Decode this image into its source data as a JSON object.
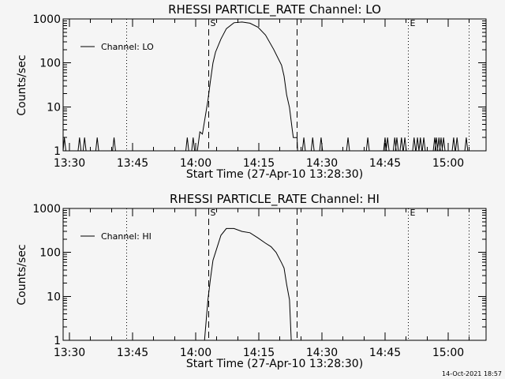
{
  "timestamp": "14-Oct-2021 18:57",
  "colors": {
    "background": "#f5f5f5",
    "ink": "#000000"
  },
  "chart_data": [
    {
      "type": "line",
      "title": "RHESSI PARTICLE_RATE Channel: LO",
      "xlabel": "Start Time (27-Apr-10 13:28:30)",
      "ylabel": "Counts/sec",
      "x_units": "minutes after 13:28:30",
      "xlim": [
        0,
        100.5
      ],
      "ylim": [
        1,
        1000
      ],
      "yscale": "log",
      "xticks": [
        {
          "label": "13:30",
          "value": 1.5
        },
        {
          "label": "13:45",
          "value": 16.5
        },
        {
          "label": "14:00",
          "value": 31.5
        },
        {
          "label": "14:15",
          "value": 46.5
        },
        {
          "label": "14:30",
          "value": 61.5
        },
        {
          "label": "14:45",
          "value": 76.5
        },
        {
          "label": "15:00",
          "value": 91.5
        }
      ],
      "yticks": [
        {
          "label": "1",
          "value": 1
        },
        {
          "label": "10",
          "value": 10
        },
        {
          "label": "100",
          "value": 100
        },
        {
          "label": "1000",
          "value": 1000
        }
      ],
      "legend": {
        "label": "Channel: LO",
        "position": "top-left"
      },
      "markers": [
        {
          "style": "dotted",
          "x": 15.0,
          "label": ""
        },
        {
          "style": "dashed",
          "x": 34.5,
          "label": "S"
        },
        {
          "style": "dashed",
          "x": 55.5,
          "label": ""
        },
        {
          "style": "dotted",
          "x": 81.9,
          "label": "E"
        },
        {
          "style": "dotted",
          "x": 96.4,
          "label": ""
        }
      ],
      "series": [
        {
          "name": "Channel: LO",
          "x": [
            31.9,
            32.5,
            33.1,
            34.4,
            35.0,
            35.6,
            36.2,
            37.5,
            38.8,
            40.6,
            42.5,
            44.4,
            46.3,
            48.1,
            50.0,
            51.9,
            52.5,
            53.1,
            53.8,
            54.4,
            54.7,
            55.6,
            55.7
          ],
          "y": [
            1,
            2.7,
            2.4,
            14,
            39,
            100,
            175,
            350,
            600,
            820,
            850,
            800,
            650,
            430,
            205,
            89,
            50,
            19,
            9.6,
            3.3,
            2,
            2,
            1
          ],
          "baseline": 1,
          "spike_value": 2,
          "spikes": [
            0.3,
            3.9,
            5.1,
            8.1,
            12.1,
            29.5,
            30.9,
            57.2,
            59.3,
            61.3,
            67.7,
            72.4,
            76.5,
            77.1,
            78.8,
            79.3,
            80.4,
            81.2,
            83.4,
            84.2,
            84.9,
            85.7,
            88.3,
            88.7,
            89.3,
            89.8,
            90.4,
            92.8,
            93.6,
            95.8
          ]
        }
      ]
    },
    {
      "type": "line",
      "title": "RHESSI PARTICLE_RATE Channel: HI",
      "xlabel": "Start Time (27-Apr-10 13:28:30)",
      "ylabel": "Counts/sec",
      "x_units": "minutes after 13:28:30",
      "xlim": [
        0,
        100.5
      ],
      "ylim": [
        1,
        1000
      ],
      "yscale": "log",
      "xticks": [
        {
          "label": "13:30",
          "value": 1.5
        },
        {
          "label": "13:45",
          "value": 16.5
        },
        {
          "label": "14:00",
          "value": 31.5
        },
        {
          "label": "14:15",
          "value": 46.5
        },
        {
          "label": "14:30",
          "value": 61.5
        },
        {
          "label": "14:45",
          "value": 76.5
        },
        {
          "label": "15:00",
          "value": 91.5
        }
      ],
      "yticks": [
        {
          "label": "1",
          "value": 1
        },
        {
          "label": "10",
          "value": 10
        },
        {
          "label": "100",
          "value": 100
        },
        {
          "label": "1000",
          "value": 1000
        }
      ],
      "legend": {
        "label": "Channel: HI",
        "position": "top-left"
      },
      "markers": [
        {
          "style": "dotted",
          "x": 15.0,
          "label": ""
        },
        {
          "style": "dashed",
          "x": 34.5,
          "label": "S"
        },
        {
          "style": "dashed",
          "x": 55.5,
          "label": ""
        },
        {
          "style": "dotted",
          "x": 81.9,
          "label": "E"
        },
        {
          "style": "dotted",
          "x": 96.4,
          "label": ""
        }
      ],
      "series": [
        {
          "name": "Channel: HI",
          "x": [
            33.6,
            34.4,
            35.0,
            35.6,
            36.2,
            37.5,
            38.8,
            40.6,
            42.5,
            44.4,
            46.3,
            48.1,
            49.4,
            50.6,
            51.9,
            52.5,
            53.1,
            53.8,
            54.2
          ],
          "y": [
            1,
            8.3,
            25,
            66,
            100,
            245,
            350,
            350,
            300,
            280,
            214,
            162,
            135,
            100,
            58,
            44,
            19,
            8.3,
            1
          ],
          "baseline": 1,
          "spike_value": 2,
          "spikes": []
        }
      ]
    }
  ]
}
